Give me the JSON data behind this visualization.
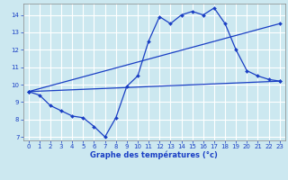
{
  "xlabel": "Graphe des températures (°c)",
  "bg_color": "#cce8f0",
  "grid_color": "#b8d8e8",
  "line_color": "#1a3fc4",
  "xlim_min": -0.5,
  "xlim_max": 23.5,
  "ylim_min": 6.8,
  "ylim_max": 14.65,
  "xticks": [
    0,
    1,
    2,
    3,
    4,
    5,
    6,
    7,
    8,
    9,
    10,
    11,
    12,
    13,
    14,
    15,
    16,
    17,
    18,
    19,
    20,
    21,
    22,
    23
  ],
  "yticks": [
    7,
    8,
    9,
    10,
    11,
    12,
    13,
    14
  ],
  "series1_x": [
    0,
    1,
    2,
    3,
    4,
    5,
    6,
    7,
    8,
    9,
    10,
    11,
    12,
    13,
    14,
    15,
    16,
    17,
    18,
    19,
    20,
    21,
    22,
    23
  ],
  "series1_y": [
    9.6,
    9.4,
    8.8,
    8.5,
    8.2,
    8.1,
    7.6,
    7.0,
    8.1,
    9.9,
    10.5,
    12.5,
    13.9,
    13.5,
    14.0,
    14.2,
    14.0,
    14.4,
    13.5,
    12.0,
    10.8,
    10.5,
    10.3,
    10.2
  ],
  "series2_x": [
    0,
    23
  ],
  "series2_y": [
    9.6,
    13.5
  ],
  "series3_x": [
    0,
    23
  ],
  "series3_y": [
    9.6,
    10.2
  ],
  "tick_fontsize": 5.0,
  "xlabel_fontsize": 6.0
}
